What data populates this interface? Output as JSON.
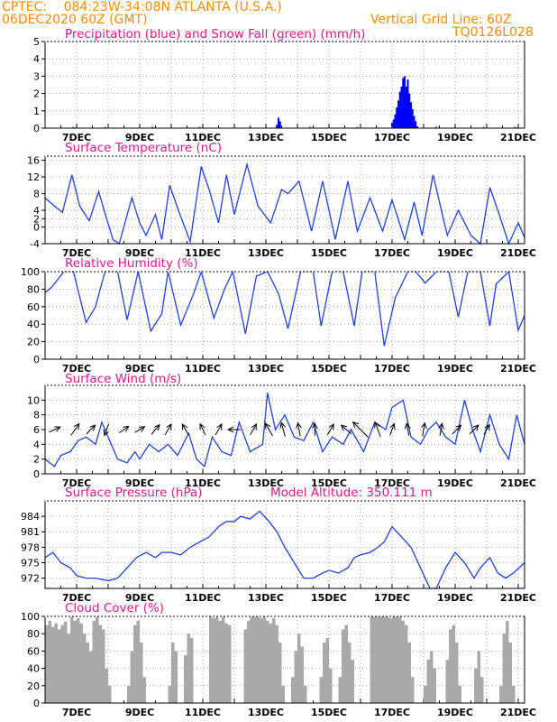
{
  "header": {
    "source": "CPTEC:",
    "location": "084:23W-34:08N  ATLANTA (U.S.A.)",
    "run": "06DEC2020 60Z (GMT)",
    "grid_note": "Vertical Grid Line: 60Z",
    "model_code": "TQ0126L028"
  },
  "panels": {
    "precip": {
      "title": "Precipitation (blue) and Snow Fall (green) (mm/h)"
    },
    "temp": {
      "title": "Surface Temperature (nC)"
    },
    "rh": {
      "title": "Relative Humidity (%)"
    },
    "wind": {
      "title": "Surface Wind (m/s)"
    },
    "pressure": {
      "title": "Surface Pressure (hPa)",
      "note": "Model Altitude: 350.111 m"
    },
    "cloud": {
      "title": "Cloud Cover (%)"
    }
  },
  "colors": {
    "header": "#ff8c00",
    "title": "#e8168b",
    "precip": "#0000ff",
    "snow": "#00aa00",
    "line": "#2040e0",
    "cloud": "#a9a9a9",
    "arrow": "#000000"
  },
  "chart_data": [
    {
      "type": "bar",
      "title": "Precipitation (blue) and Snow Fall (green) (mm/h)",
      "x_unit": "days since 06DEC2020 00Z",
      "xlim": [
        0,
        15.2
      ],
      "x_tick_labels": [
        "7DEC",
        "9DEC",
        "11DEC",
        "13DEC",
        "15DEC",
        "17DEC",
        "19DEC",
        "21DEC"
      ],
      "ylim": [
        0,
        5
      ],
      "y_ticks": [
        0,
        1,
        2,
        3,
        4,
        5
      ],
      "series": [
        {
          "name": "Precipitation",
          "color": "#0000ff",
          "x": [
            7.35,
            7.4,
            7.45,
            11.0,
            11.05,
            11.1,
            11.15,
            11.2,
            11.25,
            11.3,
            11.35,
            11.4,
            11.45,
            11.5,
            11.55,
            11.6,
            11.65,
            11.7,
            11.75,
            11.8
          ],
          "values": [
            0.2,
            0.6,
            0.4,
            0.3,
            0.5,
            0.8,
            1.2,
            1.6,
            2.1,
            2.4,
            2.9,
            3.0,
            2.4,
            2.8,
            2.0,
            1.5,
            1.1,
            0.7,
            0.4,
            0.1
          ]
        },
        {
          "name": "Snow Fall",
          "color": "#00aa00",
          "x": [
            0.9,
            1.9,
            3.4,
            4.9,
            6.5,
            8.4,
            9.9,
            11.0,
            12.4,
            13.9,
            14.9
          ],
          "values": [
            0.05,
            0.05,
            0.05,
            0.05,
            0.05,
            0.05,
            0.05,
            0.05,
            0.05,
            0.05,
            0.05
          ]
        }
      ]
    },
    {
      "type": "line",
      "title": "Surface Temperature (nC)",
      "xlim": [
        0,
        15.2
      ],
      "ylim": [
        -4,
        17
      ],
      "y_ticks": [
        -4,
        0,
        2,
        4,
        8,
        12,
        16
      ],
      "series": [
        {
          "name": "Surface Temperature",
          "color": "#2040e0",
          "x": [
            0,
            0.3,
            0.55,
            0.85,
            1.1,
            1.4,
            1.7,
            1.95,
            2.15,
            2.35,
            2.75,
            3.0,
            3.2,
            3.5,
            3.7,
            3.95,
            4.25,
            4.6,
            4.95,
            5.2,
            5.5,
            5.75,
            6.0,
            6.4,
            6.75,
            7.15,
            7.5,
            7.7,
            8.05,
            8.45,
            8.8,
            9.2,
            9.6,
            9.9,
            10.3,
            10.7,
            11.0,
            11.4,
            11.7,
            11.95,
            12.3,
            12.75,
            13.1,
            13.5,
            13.8,
            14.1,
            14.35,
            14.7,
            15.0,
            15.2
          ],
          "values": [
            7,
            5,
            3.5,
            12.5,
            5,
            1.5,
            8.5,
            2,
            -3,
            -5,
            7,
            1,
            -2,
            3,
            -3,
            10,
            3.5,
            -3.5,
            14.5,
            9,
            1,
            12.5,
            3,
            15,
            5,
            1,
            9,
            8,
            11,
            -1,
            11,
            -3,
            11,
            -1,
            7,
            -1,
            6.5,
            -3,
            6,
            -2,
            12.5,
            -2,
            4,
            -2,
            -4,
            9.5,
            4,
            -4,
            1,
            -2.5
          ]
        }
      ]
    },
    {
      "type": "line",
      "title": "Relative Humidity (%)",
      "xlim": [
        0,
        15.2
      ],
      "ylim": [
        0,
        100
      ],
      "y_ticks": [
        0,
        20,
        40,
        60,
        80,
        100
      ],
      "series": [
        {
          "name": "Relative Humidity",
          "color": "#2040e0",
          "x": [
            0,
            0.2,
            0.6,
            0.9,
            1.3,
            1.6,
            1.9,
            2.3,
            2.6,
            2.95,
            3.35,
            3.7,
            3.9,
            4.3,
            4.7,
            4.95,
            5.35,
            5.7,
            5.95,
            6.35,
            6.7,
            7.05,
            7.4,
            7.7,
            8.1,
            8.5,
            8.75,
            9.1,
            9.45,
            9.8,
            10.05,
            10.45,
            10.75,
            11.1,
            11.5,
            11.75,
            12.05,
            12.4,
            12.8,
            13.1,
            13.4,
            13.8,
            14.1,
            14.3,
            14.7,
            15.0,
            15.2
          ],
          "values": [
            76,
            82,
            100,
            100,
            42,
            60,
            100,
            100,
            45,
            100,
            32,
            52,
            100,
            39,
            74,
            100,
            47,
            81,
            100,
            29,
            95,
            100,
            75,
            35,
            100,
            100,
            38,
            100,
            100,
            38,
            100,
            100,
            15,
            70,
            100,
            100,
            87,
            100,
            100,
            48,
            100,
            100,
            38,
            86,
            100,
            33,
            50
          ]
        }
      ]
    },
    {
      "type": "line",
      "title": "Surface Wind (m/s)",
      "xlim": [
        0,
        15.2
      ],
      "ylim": [
        0,
        12
      ],
      "y_ticks": [
        0,
        2,
        4,
        6,
        8,
        10
      ],
      "series": [
        {
          "name": "Surface Wind",
          "color": "#2040e0",
          "x": [
            0,
            0.3,
            0.5,
            0.8,
            1.05,
            1.3,
            1.6,
            1.8,
            2.0,
            2.3,
            2.6,
            2.85,
            3.0,
            3.3,
            3.6,
            3.9,
            4.2,
            4.55,
            4.8,
            5.05,
            5.3,
            5.6,
            5.9,
            6.15,
            6.5,
            6.9,
            7.05,
            7.3,
            7.6,
            7.9,
            8.2,
            8.5,
            8.8,
            9.1,
            9.45,
            9.7,
            10.1,
            10.45,
            10.8,
            11.0,
            11.35,
            11.6,
            11.9,
            12.15,
            12.4,
            12.7,
            13.0,
            13.3,
            13.55,
            13.8,
            14.1,
            14.4,
            14.7,
            14.95,
            15.2
          ],
          "values": [
            2,
            1,
            2.5,
            3,
            4.5,
            5,
            4,
            7,
            5,
            2,
            1.5,
            3,
            2,
            4,
            3,
            4,
            2.5,
            5.5,
            2,
            1,
            5,
            3,
            2.5,
            7,
            3,
            4,
            11,
            6,
            8,
            5,
            4.5,
            7,
            3,
            5,
            4,
            6,
            3,
            7,
            6,
            9,
            10,
            5,
            4,
            6,
            7,
            5,
            4,
            10,
            6,
            3,
            8,
            4,
            2,
            8,
            4
          ]
        }
      ],
      "arrows": [
        {
          "x": 0.3,
          "speed": 3.5,
          "dir_deg": 25
        },
        {
          "x": 0.95,
          "speed": 4.5,
          "dir_deg": 55
        },
        {
          "x": 1.45,
          "speed": 3.5,
          "dir_deg": 45
        },
        {
          "x": 1.95,
          "speed": 3.5,
          "dir_deg": 250
        },
        {
          "x": 2.5,
          "speed": 3,
          "dir_deg": 35
        },
        {
          "x": 3.0,
          "speed": 3,
          "dir_deg": 30
        },
        {
          "x": 3.5,
          "speed": 3.5,
          "dir_deg": 50
        },
        {
          "x": 3.9,
          "speed": 3.5,
          "dir_deg": 60
        },
        {
          "x": 4.45,
          "speed": 3.5,
          "dir_deg": 120
        },
        {
          "x": 5.0,
          "speed": 3.5,
          "dir_deg": 115
        },
        {
          "x": 5.5,
          "speed": 3.5,
          "dir_deg": 60
        },
        {
          "x": 6.0,
          "speed": 3.5,
          "dir_deg": 180
        },
        {
          "x": 6.6,
          "speed": 3.5,
          "dir_deg": 60
        },
        {
          "x": 7.1,
          "speed": 4.5,
          "dir_deg": 120
        },
        {
          "x": 7.55,
          "speed": 4.5,
          "dir_deg": 105
        },
        {
          "x": 8.05,
          "speed": 4,
          "dir_deg": 100
        },
        {
          "x": 8.55,
          "speed": 3.5,
          "dir_deg": 90
        },
        {
          "x": 9.05,
          "speed": 3.5,
          "dir_deg": 60
        },
        {
          "x": 9.55,
          "speed": 4,
          "dir_deg": 140
        },
        {
          "x": 10.0,
          "speed": 8,
          "dir_deg": 135
        },
        {
          "x": 10.55,
          "speed": 5,
          "dir_deg": 110
        },
        {
          "x": 11.0,
          "speed": 3.5,
          "dir_deg": 70
        },
        {
          "x": 11.5,
          "speed": 3.5,
          "dir_deg": 100
        },
        {
          "x": 12.0,
          "speed": 4,
          "dir_deg": 80
        },
        {
          "x": 12.55,
          "speed": 3.5,
          "dir_deg": 80
        },
        {
          "x": 13.05,
          "speed": 3.5,
          "dir_deg": 45
        },
        {
          "x": 13.6,
          "speed": 3.5,
          "dir_deg": 45
        },
        {
          "x": 14.0,
          "speed": 3,
          "dir_deg": 60
        }
      ]
    },
    {
      "type": "line",
      "title": "Surface Pressure (hPa)",
      "xlim": [
        0,
        15.2
      ],
      "ylim": [
        970,
        987
      ],
      "y_ticks": [
        972,
        975,
        978,
        981,
        984
      ],
      "series": [
        {
          "name": "Surface Pressure",
          "color": "#2040e0",
          "x": [
            0,
            0.25,
            0.5,
            0.8,
            1.0,
            1.3,
            1.6,
            2.0,
            2.3,
            2.6,
            2.9,
            3.2,
            3.5,
            3.7,
            4.0,
            4.3,
            4.6,
            4.9,
            5.2,
            5.5,
            5.75,
            6.0,
            6.2,
            6.5,
            6.8,
            7.1,
            7.35,
            7.6,
            7.9,
            8.2,
            8.5,
            8.8,
            9.0,
            9.3,
            9.6,
            9.8,
            10.0,
            10.3,
            10.55,
            10.75,
            11.0,
            11.3,
            11.6,
            11.9,
            12.2,
            12.4,
            12.7,
            13.0,
            13.3,
            13.6,
            13.8,
            14.1,
            14.35,
            14.6,
            14.85,
            15.2
          ],
          "values": [
            976,
            977,
            975,
            974,
            972.5,
            972,
            972,
            971.5,
            972,
            974,
            976,
            977,
            976,
            977,
            977,
            976.5,
            978,
            979,
            980,
            982,
            983,
            983,
            984,
            983.5,
            985,
            983,
            981,
            978,
            975,
            972,
            972,
            973,
            973.5,
            973,
            974,
            976,
            976.5,
            977,
            978,
            979,
            982,
            980,
            978,
            974,
            968,
            970,
            974,
            977,
            975,
            972,
            974,
            976,
            973,
            972,
            973,
            975
          ]
        }
      ]
    },
    {
      "type": "bar",
      "title": "Cloud Cover (%)",
      "xlim": [
        0,
        15.2
      ],
      "ylim": [
        0,
        100
      ],
      "y_ticks": [
        0,
        20,
        40,
        60,
        80,
        100
      ],
      "x_tick_labels": [
        "7DEC",
        "9DEC",
        "11DEC",
        "13DEC",
        "15DEC",
        "17DEC",
        "19DEC",
        "21DEC"
      ],
      "series": [
        {
          "name": "Cloud Cover",
          "color": "#a9a9a9",
          "x": [
            0.05,
            0.15,
            0.25,
            0.35,
            0.45,
            0.55,
            0.65,
            0.75,
            0.85,
            0.95,
            1.05,
            1.15,
            1.25,
            1.35,
            1.45,
            1.55,
            1.65,
            1.75,
            1.85,
            1.95,
            2.05,
            2.15,
            2.25,
            2.35,
            2.45,
            2.55,
            2.65,
            2.75,
            2.85,
            2.95,
            3.05,
            3.15,
            3.25,
            3.35,
            3.45,
            3.55,
            3.65,
            3.75,
            3.85,
            3.95,
            4.05,
            4.15,
            4.25,
            4.35,
            4.45,
            4.55,
            4.65,
            4.75,
            4.85,
            4.95,
            5.05,
            5.15,
            5.25,
            5.35,
            5.45,
            5.55,
            5.65,
            5.75,
            5.85,
            5.95,
            6.05,
            6.15,
            6.25,
            6.35,
            6.45,
            6.55,
            6.65,
            6.75,
            6.85,
            6.95,
            7.05,
            7.15,
            7.25,
            7.35,
            7.45,
            7.55,
            7.65,
            7.75,
            7.85,
            7.95,
            8.05,
            8.15,
            8.25,
            8.35,
            8.45,
            8.55,
            8.65,
            8.75,
            8.85,
            8.95,
            9.05,
            9.15,
            9.25,
            9.35,
            9.45,
            9.55,
            9.65,
            9.75,
            9.85,
            9.95,
            10.05,
            10.15,
            10.25,
            10.35,
            10.45,
            10.55,
            10.65,
            10.75,
            10.85,
            10.95,
            11.05,
            11.15,
            11.25,
            11.35,
            11.45,
            11.55,
            11.65,
            11.75,
            11.85,
            11.95,
            12.05,
            12.15,
            12.25,
            12.35,
            12.45,
            12.55,
            12.65,
            12.75,
            12.85,
            12.95,
            13.05,
            13.15,
            13.25,
            13.35,
            13.45,
            13.55,
            13.65,
            13.75,
            13.85,
            13.95,
            14.05,
            14.15,
            14.25,
            14.35,
            14.45,
            14.55,
            14.65,
            14.75,
            14.85,
            14.95,
            15.05,
            15.15
          ],
          "values": [
            90,
            95,
            88,
            92,
            85,
            90,
            94,
            80,
            100,
            95,
            98,
            92,
            80,
            70,
            60,
            95,
            100,
            90,
            85,
            40,
            20,
            0,
            0,
            0,
            0,
            0,
            20,
            60,
            90,
            95,
            70,
            30,
            0,
            0,
            0,
            0,
            0,
            0,
            0,
            20,
            70,
            60,
            0,
            0,
            55,
            80,
            75,
            0,
            0,
            0,
            0,
            0,
            100,
            98,
            100,
            95,
            100,
            92,
            90,
            0,
            0,
            0,
            0,
            85,
            95,
            100,
            100,
            100,
            98,
            100,
            95,
            92,
            98,
            90,
            70,
            20,
            0,
            0,
            30,
            60,
            80,
            65,
            20,
            0,
            0,
            0,
            0,
            30,
            70,
            75,
            40,
            0,
            0,
            30,
            85,
            90,
            70,
            50,
            0,
            0,
            0,
            0,
            0,
            100,
            100,
            100,
            100,
            100,
            100,
            98,
            100,
            100,
            100,
            95,
            90,
            70,
            30,
            0,
            0,
            0,
            20,
            50,
            60,
            40,
            0,
            0,
            0,
            50,
            85,
            90,
            70,
            20,
            0,
            0,
            0,
            0,
            40,
            60,
            30,
            0,
            0,
            0,
            0,
            0,
            20,
            80,
            95,
            70,
            20,
            0,
            0,
            0
          ]
        }
      ]
    }
  ]
}
